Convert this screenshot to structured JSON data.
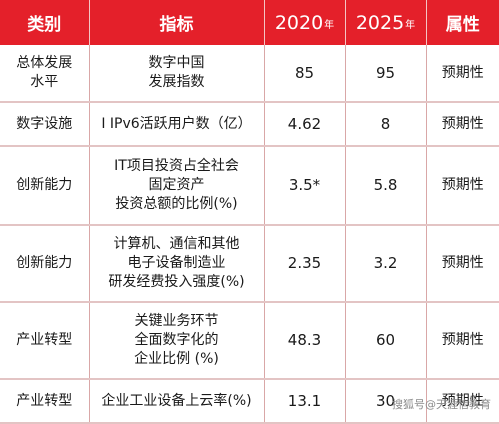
{
  "header": {
    "category": "类别",
    "indicator": "指标",
    "year_2020": "2020",
    "year_2025": "2025",
    "year_suffix": "年",
    "attribute": "属性"
  },
  "rows": [
    {
      "category_lines": [
        "总体发展",
        "水平"
      ],
      "indicator_lines": [
        "数字中国",
        "发展指数"
      ],
      "v2020": "85",
      "v2025": "95",
      "attribute": "预期性"
    },
    {
      "category_lines": [
        "数字设施"
      ],
      "indicator_lines": [
        "I IPv6活跃用户数（亿）"
      ],
      "v2020": "4.62",
      "v2025": "8",
      "attribute": "预期性"
    },
    {
      "category_lines": [
        "创新能力"
      ],
      "indicator_lines": [
        "IT项目投资占全社会",
        "固定资产",
        "投资总额的比例(%)"
      ],
      "v2020": "3.5*",
      "v2025": "5.8",
      "attribute": "预期性"
    },
    {
      "category_lines": [
        "创新能力"
      ],
      "indicator_lines": [
        "计算机、通信和其他",
        "电子设备制造业",
        "研发经费投入强度(%)"
      ],
      "v2020": "2.35",
      "v2025": "3.2",
      "attribute": "预期性"
    },
    {
      "category_lines": [
        "产业转型"
      ],
      "indicator_lines": [
        "关键业务环节",
        "全面数字化的",
        "企业比例 (%)"
      ],
      "v2020": "48.3",
      "v2025": "60",
      "attribute": "预期性"
    },
    {
      "category_lines": [
        "产业转型"
      ],
      "indicator_lines": [
        "企业工业设备上云率(%)"
      ],
      "v2020": "13.1",
      "v2025": "30",
      "attribute": "预期性"
    }
  ],
  "watermark": "搜狐号@天涯信教育",
  "colors": {
    "header_bg": "#e4202a",
    "header_text": "#ffffff",
    "cell_bg": "#ffffff",
    "border": "#d9a7a7"
  }
}
